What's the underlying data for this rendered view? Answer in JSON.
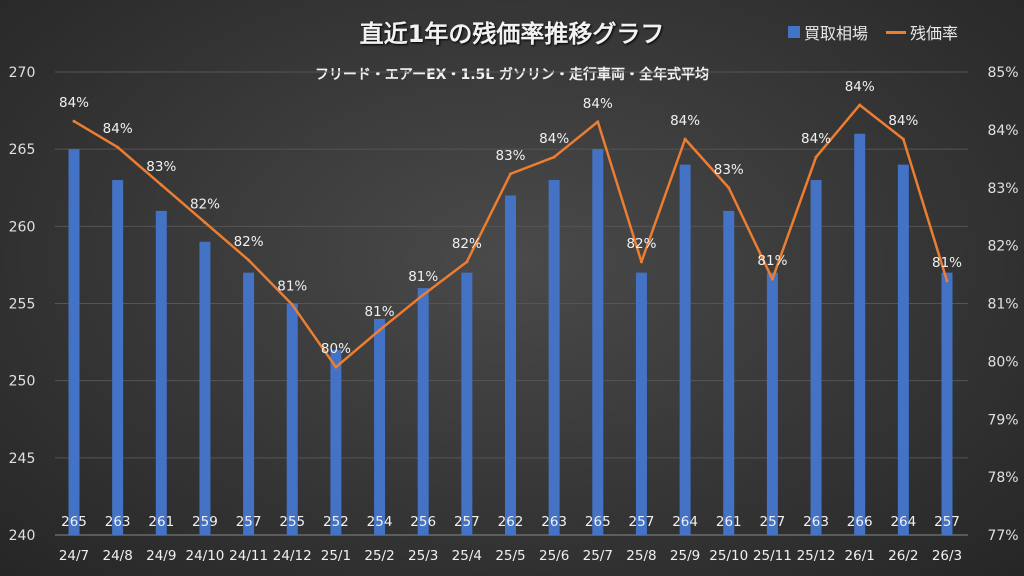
{
  "chart_data": {
    "type": "bar+line",
    "title": "直近1年の残価率推移グラフ",
    "subtitle": "フリード・エアーEX・1.5L ガソリン・走行車両・全年式平均",
    "categories": [
      "24/7",
      "24/8",
      "24/9",
      "24/10",
      "24/11",
      "24/12",
      "25/1",
      "25/2",
      "25/3",
      "25/4",
      "25/5",
      "25/6",
      "25/7",
      "25/8",
      "25/9",
      "25/10",
      "25/11",
      "25/12",
      "26/1",
      "26/2",
      "26/3"
    ],
    "series": [
      {
        "name": "買取相場",
        "type": "bar",
        "axis": "left",
        "color": "#4472c4",
        "values": [
          265,
          263,
          261,
          259,
          257,
          255,
          252,
          254,
          256,
          257,
          262,
          263,
          265,
          257,
          264,
          261,
          257,
          263,
          266,
          264,
          257
        ]
      },
      {
        "name": "残価率",
        "type": "line",
        "axis": "right",
        "color": "#ed7d31",
        "values": [
          84.15,
          83.7,
          83.05,
          82.4,
          81.75,
          80.98,
          79.9,
          80.54,
          81.15,
          81.72,
          83.24,
          83.53,
          84.14,
          81.72,
          83.84,
          83.0,
          81.42,
          83.53,
          84.43,
          83.84,
          81.39
        ],
        "labels": [
          "84%",
          "84%",
          "83%",
          "82%",
          "82%",
          "81%",
          "80%",
          "81%",
          "81%",
          "82%",
          "83%",
          "84%",
          "84%",
          "82%",
          "84%",
          "83%",
          "81%",
          "84%",
          "84%",
          "84%",
          "81%"
        ]
      }
    ],
    "y_left": {
      "min": 240,
      "max": 270,
      "ticks": [
        240,
        245,
        250,
        255,
        260,
        265,
        270
      ]
    },
    "y_right": {
      "min": 77,
      "max": 85,
      "ticks": [
        "77%",
        "78%",
        "79%",
        "80%",
        "81%",
        "82%",
        "83%",
        "84%",
        "85%"
      ]
    },
    "grid": true,
    "legend": "top-right"
  }
}
